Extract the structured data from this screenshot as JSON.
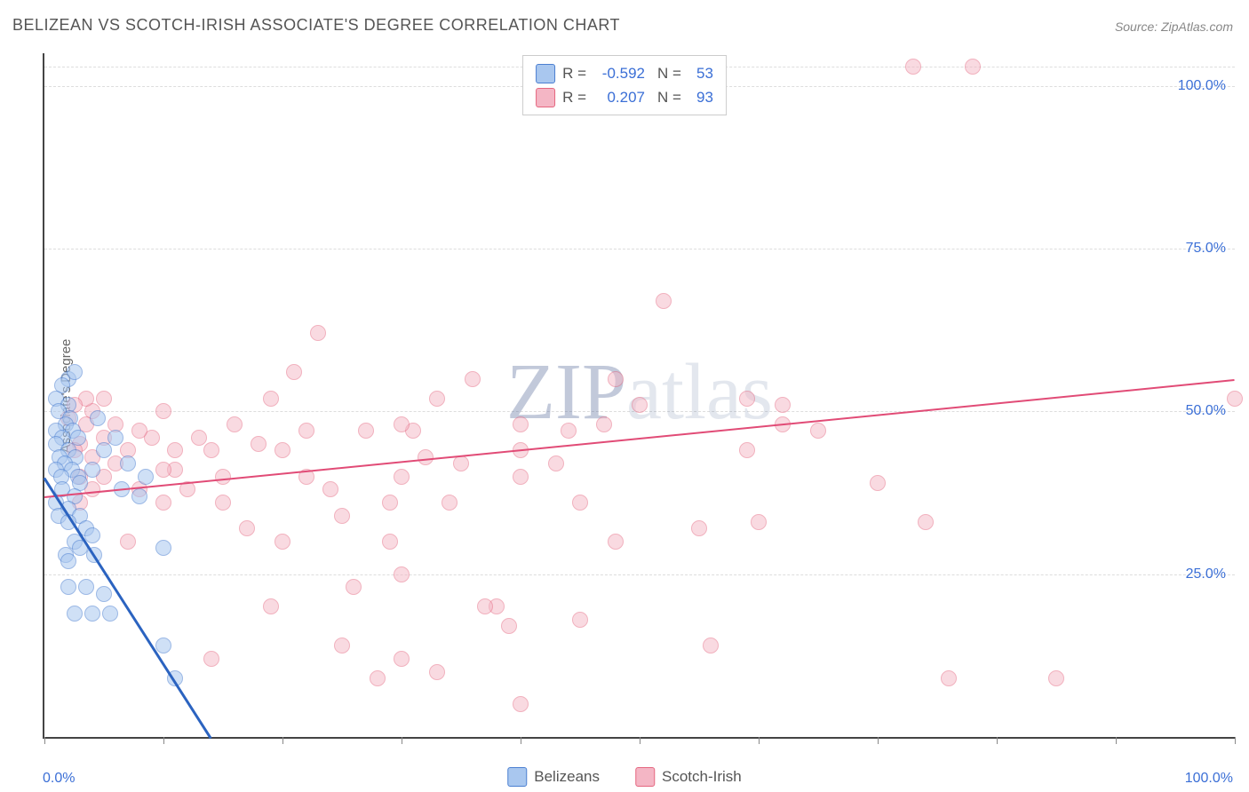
{
  "title": "BELIZEAN VS SCOTCH-IRISH ASSOCIATE'S DEGREE CORRELATION CHART",
  "source": "Source: ZipAtlas.com",
  "ylabel": "Associate's Degree",
  "watermark": {
    "zip": "ZIP",
    "rest": "atlas"
  },
  "chart": {
    "type": "scatter",
    "background_color": "#ffffff",
    "grid_color": "#dddddd",
    "axis_color": "#444444",
    "xlim": [
      0,
      100
    ],
    "ylim": [
      0,
      105
    ],
    "yticks": [
      {
        "v": 25,
        "label": "25.0%"
      },
      {
        "v": 50,
        "label": "50.0%"
      },
      {
        "v": 75,
        "label": "75.0%"
      },
      {
        "v": 100,
        "label": "100.0%"
      },
      {
        "v": 103,
        "label": "",
        "grid_only": true
      }
    ],
    "xtick_positions": [
      0,
      10,
      20,
      30,
      40,
      50,
      60,
      70,
      80,
      90,
      100
    ],
    "x_labels": [
      {
        "v": 0,
        "label": "0.0%",
        "align": "left"
      },
      {
        "v": 100,
        "label": "100.0%",
        "align": "right"
      }
    ],
    "marker_radius": 8,
    "marker_border_width": 1.5,
    "series": [
      {
        "name": "Belizeans",
        "fill": "#a9c7ef",
        "stroke": "#4b7fd1",
        "fill_opacity": 0.55,
        "R": "-0.592",
        "N": "53",
        "trend": {
          "x1": 0,
          "y1": 40,
          "x2": 14,
          "y2": 0,
          "color": "#2b63c0",
          "width": 2.5
        },
        "points": [
          [
            2,
            55
          ],
          [
            1.5,
            54
          ],
          [
            2.5,
            56
          ],
          [
            1,
            52
          ],
          [
            2,
            51
          ],
          [
            1.2,
            50
          ],
          [
            2.2,
            49
          ],
          [
            1.8,
            48
          ],
          [
            1,
            47
          ],
          [
            2.4,
            47
          ],
          [
            1.5,
            46
          ],
          [
            2.8,
            46
          ],
          [
            1,
            45
          ],
          [
            2,
            44
          ],
          [
            1.3,
            43
          ],
          [
            2.6,
            43
          ],
          [
            1.7,
            42
          ],
          [
            1,
            41
          ],
          [
            2.3,
            41
          ],
          [
            2.8,
            40
          ],
          [
            1.4,
            40
          ],
          [
            4.5,
            49
          ],
          [
            5,
            44
          ],
          [
            6,
            46
          ],
          [
            7,
            42
          ],
          [
            4,
            41
          ],
          [
            3,
            39
          ],
          [
            1.5,
            38
          ],
          [
            2.5,
            37
          ],
          [
            1,
            36
          ],
          [
            2,
            35
          ],
          [
            1.2,
            34
          ],
          [
            3,
            34
          ],
          [
            2,
            33
          ],
          [
            3.5,
            32
          ],
          [
            4,
            31
          ],
          [
            2.5,
            30
          ],
          [
            3,
            29
          ],
          [
            1.8,
            28
          ],
          [
            4.2,
            28
          ],
          [
            2,
            27
          ],
          [
            2,
            23
          ],
          [
            3.5,
            23
          ],
          [
            5,
            22
          ],
          [
            2.5,
            19
          ],
          [
            4,
            19
          ],
          [
            5.5,
            19
          ],
          [
            10,
            29
          ],
          [
            10,
            14
          ],
          [
            11,
            9
          ],
          [
            8,
            37
          ],
          [
            8.5,
            40
          ],
          [
            6.5,
            38
          ]
        ]
      },
      {
        "name": "Scotch-Irish",
        "fill": "#f4b6c5",
        "stroke": "#e5667f",
        "fill_opacity": 0.5,
        "R": "0.207",
        "N": "93",
        "trend": {
          "x1": 0,
          "y1": 37,
          "x2": 100,
          "y2": 55,
          "color": "#e14b76",
          "width": 2
        },
        "points": [
          [
            73,
            103
          ],
          [
            78,
            103
          ],
          [
            100,
            52
          ],
          [
            62,
            51
          ],
          [
            62,
            48
          ],
          [
            59,
            52
          ],
          [
            59,
            44
          ],
          [
            60,
            33
          ],
          [
            56,
            14
          ],
          [
            55,
            32
          ],
          [
            52,
            67
          ],
          [
            50,
            51
          ],
          [
            48,
            55
          ],
          [
            48,
            30
          ],
          [
            47,
            48
          ],
          [
            45,
            36
          ],
          [
            45,
            18
          ],
          [
            44,
            47
          ],
          [
            43,
            42
          ],
          [
            40,
            5
          ],
          [
            40,
            44
          ],
          [
            40,
            40
          ],
          [
            40,
            48
          ],
          [
            38,
            20
          ],
          [
            37,
            20
          ],
          [
            36,
            55
          ],
          [
            35,
            42
          ],
          [
            34,
            36
          ],
          [
            33,
            52
          ],
          [
            32,
            43
          ],
          [
            31,
            47
          ],
          [
            30,
            48
          ],
          [
            30,
            40
          ],
          [
            30,
            25
          ],
          [
            30,
            12
          ],
          [
            29,
            36
          ],
          [
            29,
            30
          ],
          [
            28,
            9
          ],
          [
            27,
            47
          ],
          [
            26,
            23
          ],
          [
            25,
            34
          ],
          [
            25,
            14
          ],
          [
            24,
            38
          ],
          [
            23,
            62
          ],
          [
            22,
            40
          ],
          [
            22,
            47
          ],
          [
            21,
            56
          ],
          [
            20,
            44
          ],
          [
            20,
            30
          ],
          [
            19,
            20
          ],
          [
            19,
            52
          ],
          [
            18,
            45
          ],
          [
            17,
            32
          ],
          [
            16,
            48
          ],
          [
            15,
            40
          ],
          [
            15,
            36
          ],
          [
            14,
            44
          ],
          [
            14,
            12
          ],
          [
            13,
            46
          ],
          [
            12,
            38
          ],
          [
            11,
            41
          ],
          [
            11,
            44
          ],
          [
            10,
            50
          ],
          [
            10,
            36
          ],
          [
            10,
            41
          ],
          [
            9,
            46
          ],
          [
            8,
            38
          ],
          [
            8,
            47
          ],
          [
            7,
            44
          ],
          [
            7,
            30
          ],
          [
            6,
            48
          ],
          [
            6,
            42
          ],
          [
            5,
            46
          ],
          [
            5,
            52
          ],
          [
            5,
            40
          ],
          [
            4,
            50
          ],
          [
            4,
            38
          ],
          [
            4,
            43
          ],
          [
            3.5,
            52
          ],
          [
            3.5,
            48
          ],
          [
            3,
            45
          ],
          [
            3,
            36
          ],
          [
            3,
            40
          ],
          [
            2.5,
            51
          ],
          [
            2.5,
            44
          ],
          [
            2,
            49
          ],
          [
            65,
            47
          ],
          [
            70,
            39
          ],
          [
            76,
            9
          ],
          [
            74,
            33
          ],
          [
            85,
            9
          ],
          [
            39,
            17
          ],
          [
            33,
            10
          ]
        ]
      }
    ],
    "legend_bottom": [
      {
        "label": "Belizeans",
        "fill": "#a9c7ef",
        "stroke": "#4b7fd1"
      },
      {
        "label": "Scotch-Irish",
        "fill": "#f4b6c5",
        "stroke": "#e5667f"
      }
    ]
  }
}
